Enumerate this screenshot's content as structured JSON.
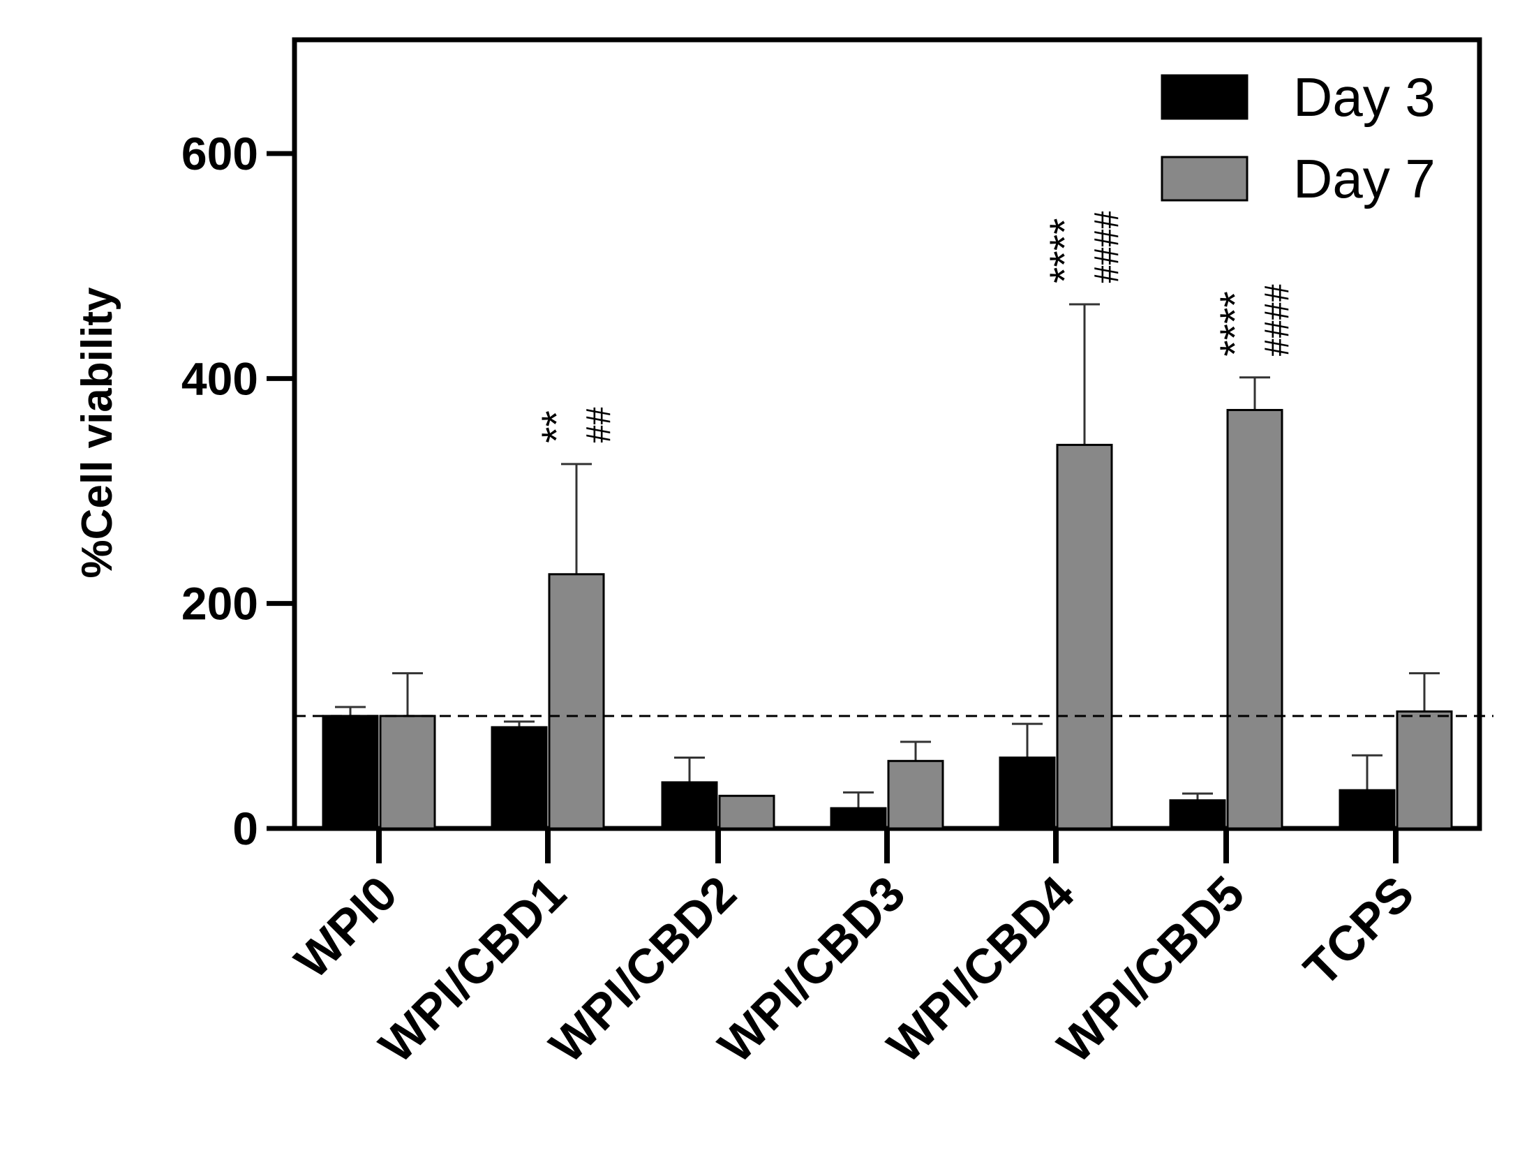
{
  "chart_data": {
    "type": "bar",
    "ylabel": "%Cell viability",
    "xlabel": "",
    "ylim": [
      0,
      700
    ],
    "yticks": [
      0,
      200,
      400,
      600
    ],
    "categories": [
      "WPI0",
      "WPI/CBD1",
      "WPI/CBD2",
      "WPI/CBD3",
      "WPI/CBD4",
      "WPI/CBD5",
      "TCPS"
    ],
    "series": [
      {
        "name": "Day 3",
        "color": "#000000",
        "values": [
          100,
          90,
          41,
          18,
          63,
          25,
          34
        ],
        "errors": [
          8,
          5,
          22,
          14,
          30,
          6,
          31
        ]
      },
      {
        "name": "Day 7",
        "color": "#888888",
        "values": [
          100,
          226,
          29,
          60,
          341,
          372,
          104
        ],
        "errors": [
          38,
          98,
          0,
          17,
          125,
          29,
          34
        ]
      }
    ],
    "reference_line": {
      "y": 100,
      "style": "dashed"
    },
    "annotations": [
      {
        "category": "WPI/CBD1",
        "stars": "**",
        "hashes": "##"
      },
      {
        "category": "WPI/CBD4",
        "stars": "****",
        "hashes": "####"
      },
      {
        "category": "WPI/CBD5",
        "stars": "****",
        "hashes": "####"
      }
    ],
    "legend_position": "top-right",
    "grid": false
  }
}
